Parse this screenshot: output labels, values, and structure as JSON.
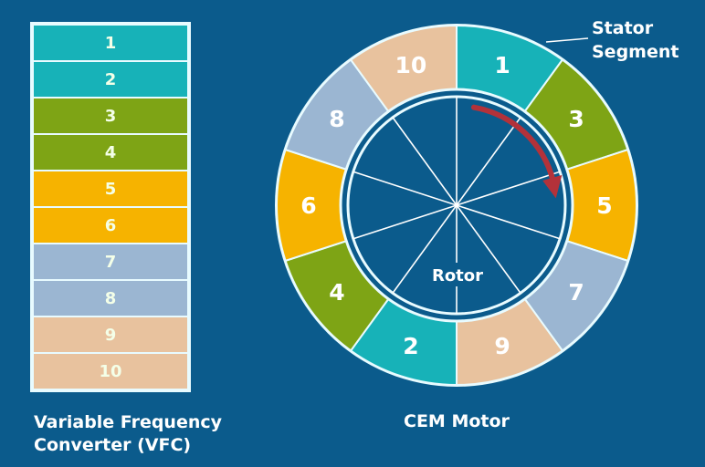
{
  "colors": {
    "background": "#0b5b8c",
    "teal": "#17b2b8",
    "green": "#7ea415",
    "orange": "#f6b300",
    "blue": "#9bb6d2",
    "peach": "#e8c29e",
    "arrow": "#b3323a"
  },
  "vfc": {
    "label_line1": "Variable Frequency",
    "label_line2": "Converter (VFC)",
    "rows": [
      {
        "label": "1",
        "color": "#17b2b8"
      },
      {
        "label": "2",
        "color": "#17b2b8"
      },
      {
        "label": "3",
        "color": "#7ea415"
      },
      {
        "label": "4",
        "color": "#7ea415"
      },
      {
        "label": "5",
        "color": "#f6b300"
      },
      {
        "label": "6",
        "color": "#f6b300"
      },
      {
        "label": "7",
        "color": "#9bb6d2"
      },
      {
        "label": "8",
        "color": "#9bb6d2"
      },
      {
        "label": "9",
        "color": "#e8c29e"
      },
      {
        "label": "10",
        "color": "#e8c29e"
      }
    ]
  },
  "motor": {
    "label": "CEM Motor",
    "rotor_label": "Rotor",
    "stator_label_line1": "Stator",
    "stator_label_line2": "Segment",
    "segments": [
      {
        "label": "1",
        "color": "#17b2b8"
      },
      {
        "label": "3",
        "color": "#7ea415"
      },
      {
        "label": "5",
        "color": "#f6b300"
      },
      {
        "label": "7",
        "color": "#9bb6d2"
      },
      {
        "label": "9",
        "color": "#e8c29e"
      },
      {
        "label": "2",
        "color": "#17b2b8"
      },
      {
        "label": "4",
        "color": "#7ea415"
      },
      {
        "label": "6",
        "color": "#f6b300"
      },
      {
        "label": "8",
        "color": "#9bb6d2"
      },
      {
        "label": "10",
        "color": "#e8c29e"
      }
    ],
    "rotation": "clockwise"
  }
}
